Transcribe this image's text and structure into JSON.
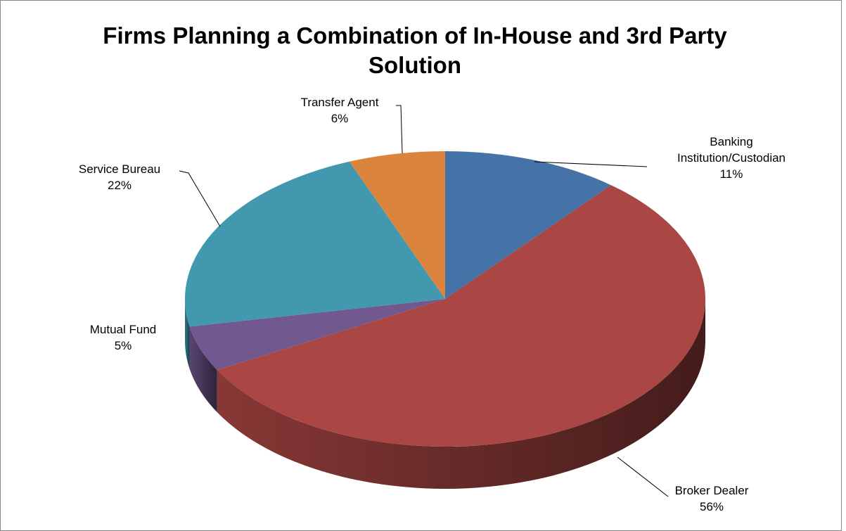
{
  "chart_data": {
    "type": "pie3d",
    "title": "Firms Planning a Combination of In-House and 3rd Party Solution",
    "categories": [
      "Banking Institution/Custodian",
      "Broker Dealer",
      "Mutual Fund",
      "Service Bureau",
      "Transfer Agent"
    ],
    "values": [
      11,
      56,
      5,
      22,
      6
    ],
    "value_labels": [
      "11%",
      "56%",
      "5%",
      "22%",
      "6%"
    ],
    "colors": [
      "#4572a7",
      "#aa4643",
      "#71588f",
      "#4198af",
      "#db843d"
    ]
  }
}
